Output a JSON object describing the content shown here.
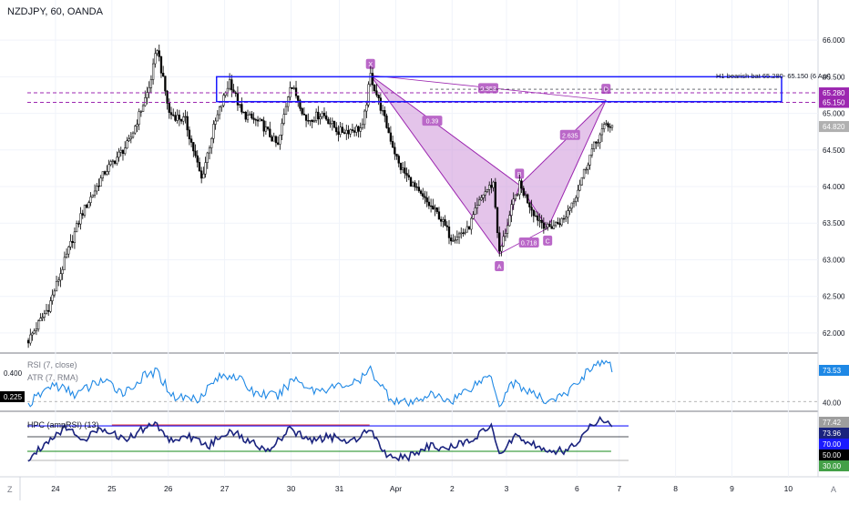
{
  "header": {
    "title": "NZDJPY, 60, OANDA"
  },
  "footer": {
    "zoom_label": "Z",
    "auto_label": "A"
  },
  "annotation": {
    "pattern_label": "H1 bearish bat 65.280- 65.150 (6 Apr)"
  },
  "colors": {
    "candle": "#000000",
    "pattern_fill": "#ce93d8",
    "pattern_line": "#9c27b0",
    "zone_line": "#1a1aff",
    "dashed": "#9c27b0",
    "rsi_line": "#1e88e5",
    "hpc_line": "#1a237e",
    "red_line": "#e53935",
    "green_line": "#43a047"
  },
  "chart_data": [
    {
      "type": "candlestick",
      "title": "NZDJPY, 60, OANDA",
      "ylim": [
        61.8,
        66.3
      ],
      "yticks": [
        "66.000",
        "65.500",
        "65.000",
        "64.500",
        "64.000",
        "63.500",
        "63.000",
        "62.500",
        "62.000"
      ],
      "x_ticks": [
        "24",
        "25",
        "26",
        "27",
        "30",
        "31",
        "Apr",
        "2",
        "3",
        "6",
        "7",
        "8",
        "9",
        "10"
      ],
      "price_labels": [
        {
          "text": "65.280",
          "value": 65.28,
          "color": "#9c27b0"
        },
        {
          "text": "65.150",
          "value": 65.15,
          "color": "#9c27b0"
        },
        {
          "text": "64.820",
          "value": 64.82,
          "color": "#b0b0b0"
        }
      ],
      "horizontal_levels": [
        65.28,
        65.15
      ],
      "zone": {
        "top": 65.5,
        "bottom": 65.16
      },
      "pattern": {
        "name": "Bat",
        "points": [
          {
            "label": "X",
            "value": 65.52
          },
          {
            "label": "A",
            "value": 63.08
          },
          {
            "label": "B",
            "value": 64.02
          },
          {
            "label": "C",
            "value": 63.43
          },
          {
            "label": "D",
            "value": 65.18
          }
        ],
        "ratios": [
          "0.853",
          "0.39",
          "0.718",
          "2.635"
        ]
      },
      "anchors": [
        {
          "x": 0,
          "y": 61.9
        },
        {
          "x": 10,
          "y": 62.35
        },
        {
          "x": 26,
          "y": 63.6
        },
        {
          "x": 38,
          "y": 64.2
        },
        {
          "x": 50,
          "y": 64.6
        },
        {
          "x": 60,
          "y": 65.35
        },
        {
          "x": 64,
          "y": 65.9
        },
        {
          "x": 70,
          "y": 65.0
        },
        {
          "x": 78,
          "y": 64.9
        },
        {
          "x": 86,
          "y": 64.1
        },
        {
          "x": 92,
          "y": 64.8
        },
        {
          "x": 100,
          "y": 65.45
        },
        {
          "x": 106,
          "y": 65.0
        },
        {
          "x": 116,
          "y": 64.85
        },
        {
          "x": 124,
          "y": 64.55
        },
        {
          "x": 130,
          "y": 65.4
        },
        {
          "x": 134,
          "y": 65.2
        },
        {
          "x": 138,
          "y": 64.9
        },
        {
          "x": 146,
          "y": 65.0
        },
        {
          "x": 154,
          "y": 64.75
        },
        {
          "x": 166,
          "y": 64.8
        },
        {
          "x": 170,
          "y": 65.52
        },
        {
          "x": 176,
          "y": 65.0
        },
        {
          "x": 184,
          "y": 64.3
        },
        {
          "x": 194,
          "y": 63.9
        },
        {
          "x": 204,
          "y": 63.6
        },
        {
          "x": 210,
          "y": 63.3
        },
        {
          "x": 218,
          "y": 63.4
        },
        {
          "x": 226,
          "y": 63.9
        },
        {
          "x": 231,
          "y": 64.05
        },
        {
          "x": 234,
          "y": 63.08
        },
        {
          "x": 240,
          "y": 63.7
        },
        {
          "x": 244,
          "y": 64.02
        },
        {
          "x": 252,
          "y": 63.6
        },
        {
          "x": 258,
          "y": 63.43
        },
        {
          "x": 266,
          "y": 63.55
        },
        {
          "x": 272,
          "y": 63.9
        },
        {
          "x": 280,
          "y": 64.5
        },
        {
          "x": 287,
          "y": 64.85
        },
        {
          "x": 290,
          "y": 64.82
        }
      ]
    },
    {
      "type": "line",
      "title": "RSI (7, close)",
      "subtitle": "ATR (7, RMA)",
      "ylim": [
        35,
        85
      ],
      "yticks": [
        "40.00"
      ],
      "left_labels": [
        "0.400",
        "0.225"
      ],
      "last_value_label": "73.53",
      "reference_level": 41,
      "anchors": [
        {
          "x": 0,
          "y": 38
        },
        {
          "x": 12,
          "y": 58
        },
        {
          "x": 24,
          "y": 48
        },
        {
          "x": 36,
          "y": 62
        },
        {
          "x": 48,
          "y": 50
        },
        {
          "x": 58,
          "y": 66
        },
        {
          "x": 64,
          "y": 70
        },
        {
          "x": 72,
          "y": 46
        },
        {
          "x": 84,
          "y": 44
        },
        {
          "x": 94,
          "y": 64
        },
        {
          "x": 102,
          "y": 68
        },
        {
          "x": 112,
          "y": 50
        },
        {
          "x": 124,
          "y": 46
        },
        {
          "x": 132,
          "y": 64
        },
        {
          "x": 142,
          "y": 52
        },
        {
          "x": 154,
          "y": 56
        },
        {
          "x": 164,
          "y": 60
        },
        {
          "x": 170,
          "y": 72
        },
        {
          "x": 180,
          "y": 44
        },
        {
          "x": 190,
          "y": 38
        },
        {
          "x": 198,
          "y": 48
        },
        {
          "x": 210,
          "y": 42
        },
        {
          "x": 222,
          "y": 58
        },
        {
          "x": 230,
          "y": 68
        },
        {
          "x": 234,
          "y": 37
        },
        {
          "x": 240,
          "y": 60
        },
        {
          "x": 246,
          "y": 54
        },
        {
          "x": 256,
          "y": 42
        },
        {
          "x": 266,
          "y": 46
        },
        {
          "x": 272,
          "y": 58
        },
        {
          "x": 280,
          "y": 76
        },
        {
          "x": 286,
          "y": 79
        },
        {
          "x": 290,
          "y": 74
        }
      ]
    },
    {
      "type": "line",
      "title": "HPC (ampRSI) (13)",
      "ylim": [
        22,
        86
      ],
      "levels": [
        {
          "text": "77.42",
          "value": 77.42,
          "color": "#9e9e9e"
        },
        {
          "text": "73.96",
          "value": 73.96,
          "color": "#1a237e"
        },
        {
          "text": "70.00",
          "value": 70.0,
          "color": "#1a1aff"
        },
        {
          "text": "50.00",
          "value": 50.0,
          "color": "#000000"
        },
        {
          "text": "30.00",
          "value": 30.0,
          "color": "#43a047"
        }
      ],
      "anchors": [
        {
          "x": 0,
          "y": 36
        },
        {
          "x": 8,
          "y": 55
        },
        {
          "x": 18,
          "y": 72
        },
        {
          "x": 28,
          "y": 60
        },
        {
          "x": 38,
          "y": 72
        },
        {
          "x": 48,
          "y": 58
        },
        {
          "x": 58,
          "y": 72
        },
        {
          "x": 64,
          "y": 76
        },
        {
          "x": 70,
          "y": 58
        },
        {
          "x": 80,
          "y": 62
        },
        {
          "x": 90,
          "y": 52
        },
        {
          "x": 100,
          "y": 70
        },
        {
          "x": 110,
          "y": 56
        },
        {
          "x": 120,
          "y": 48
        },
        {
          "x": 130,
          "y": 70
        },
        {
          "x": 140,
          "y": 58
        },
        {
          "x": 150,
          "y": 62
        },
        {
          "x": 160,
          "y": 56
        },
        {
          "x": 170,
          "y": 72
        },
        {
          "x": 178,
          "y": 42
        },
        {
          "x": 188,
          "y": 38
        },
        {
          "x": 198,
          "y": 52
        },
        {
          "x": 208,
          "y": 48
        },
        {
          "x": 220,
          "y": 60
        },
        {
          "x": 230,
          "y": 72
        },
        {
          "x": 234,
          "y": 40
        },
        {
          "x": 242,
          "y": 64
        },
        {
          "x": 250,
          "y": 55
        },
        {
          "x": 258,
          "y": 44
        },
        {
          "x": 268,
          "y": 48
        },
        {
          "x": 276,
          "y": 62
        },
        {
          "x": 281,
          "y": 78
        },
        {
          "x": 286,
          "y": 81
        },
        {
          "x": 290,
          "y": 74
        }
      ],
      "red_segment": {
        "value": 75,
        "from": 42,
        "to": 170
      },
      "green_segment": {
        "value": 46,
        "from": 0,
        "to": 290
      }
    }
  ]
}
